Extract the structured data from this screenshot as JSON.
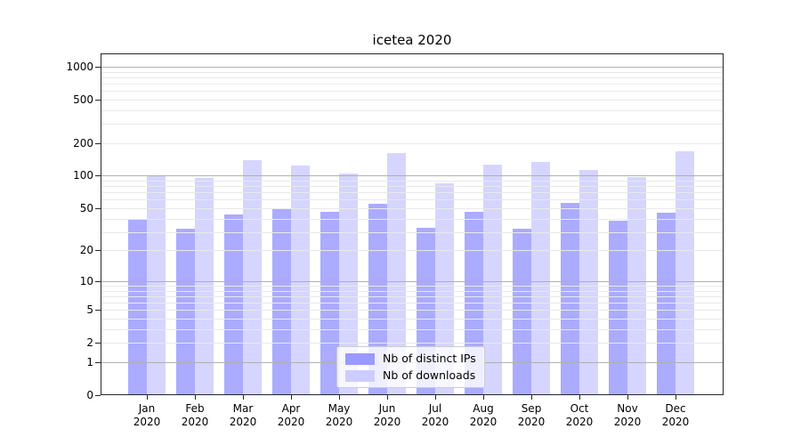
{
  "title": "icetea 2020",
  "chart_data": {
    "type": "bar",
    "title": "icetea 2020",
    "categories": [
      "Jan",
      "Feb",
      "Mar",
      "Apr",
      "May",
      "Jun",
      "Jul",
      "Aug",
      "Sep",
      "Oct",
      "Nov",
      "Dec"
    ],
    "category_year": "2020",
    "series": [
      {
        "name": "Nb of distinct IPs",
        "color": "#9999ff",
        "values": [
          40,
          32,
          44,
          50,
          46,
          55,
          33,
          46,
          32,
          56,
          38,
          45
        ]
      },
      {
        "name": "Nb of downloads",
        "color": "#ccccff",
        "values": [
          100,
          96,
          140,
          125,
          105,
          162,
          85,
          126,
          134,
          113,
          98,
          168
        ]
      }
    ],
    "yscale": "log1p",
    "yticks": [
      0,
      1,
      2,
      5,
      10,
      20,
      50,
      100,
      200,
      500,
      1000
    ],
    "ylim": [
      0,
      1320
    ],
    "xlabel": "",
    "ylabel": "",
    "grid": {
      "major_values": [
        1,
        10,
        100,
        1000
      ],
      "minor_values": [
        2,
        3,
        4,
        5,
        6,
        7,
        8,
        9,
        20,
        30,
        40,
        50,
        60,
        70,
        80,
        90,
        200,
        300,
        400,
        500,
        600,
        700,
        800,
        900
      ],
      "major_color": "#b0b0b0",
      "minor_color": "#e9e9e9"
    },
    "legend_position": "lower center",
    "axis_color": "#262626",
    "background_color": "#ffffff"
  }
}
